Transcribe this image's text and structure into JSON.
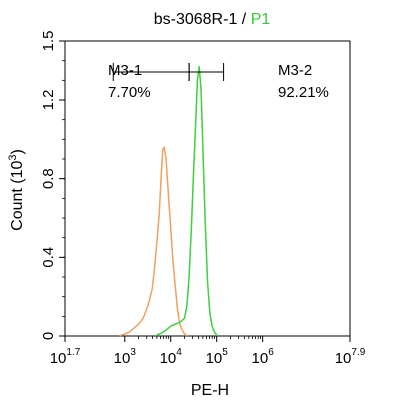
{
  "chart_data": {
    "type": "line",
    "title": {
      "sample": "bs-3068R-1",
      "separator": " / ",
      "gate": "P1"
    },
    "xlabel": "PE-H",
    "ylabel": "Count",
    "ylabel_unit_base": "10",
    "ylabel_unit_exp": "3",
    "x_scale": "log",
    "xlim_log10": [
      1.7,
      7.9
    ],
    "ylim": [
      0,
      1.5
    ],
    "x_ticks": [
      {
        "base": "10",
        "exp": "1.7",
        "log": 1.7
      },
      {
        "base": "10",
        "exp": "3",
        "log": 3
      },
      {
        "base": "10",
        "exp": "4",
        "log": 4
      },
      {
        "base": "10",
        "exp": "5",
        "log": 5
      },
      {
        "base": "10",
        "exp": "6",
        "log": 6
      },
      {
        "base": "10",
        "exp": "7.9",
        "log": 7.9
      }
    ],
    "y_ticks": [
      "0",
      "0.4",
      "0.8",
      "1.2",
      "1.5"
    ],
    "y_tick_values": [
      0,
      0.4,
      0.8,
      1.2,
      1.5
    ],
    "markers": [
      {
        "name": "M3-1",
        "percent": "7.70%",
        "range_log10": [
          2.75,
          4.4
        ]
      },
      {
        "name": "M3-2",
        "percent": "92.21%",
        "range_log10": [
          4.4,
          5.15
        ]
      }
    ],
    "series": [
      {
        "color": "#f0a15e",
        "points": [
          [
            2.9,
            0.002
          ],
          [
            3.0,
            0.01
          ],
          [
            3.1,
            0.02
          ],
          [
            3.2,
            0.04
          ],
          [
            3.3,
            0.06
          ],
          [
            3.4,
            0.09
          ],
          [
            3.5,
            0.15
          ],
          [
            3.6,
            0.24
          ],
          [
            3.65,
            0.35
          ],
          [
            3.7,
            0.48
          ],
          [
            3.75,
            0.62
          ],
          [
            3.8,
            0.84
          ],
          [
            3.83,
            0.95
          ],
          [
            3.86,
            0.96
          ],
          [
            3.9,
            0.9
          ],
          [
            3.95,
            0.72
          ],
          [
            4.0,
            0.55
          ],
          [
            4.05,
            0.38
          ],
          [
            4.1,
            0.25
          ],
          [
            4.15,
            0.13
          ],
          [
            4.2,
            0.06
          ],
          [
            4.25,
            0.03
          ],
          [
            4.3,
            0.01
          ],
          [
            4.35,
            0.002
          ]
        ]
      },
      {
        "color": "#3ed03e",
        "points": [
          [
            3.7,
            0.005
          ],
          [
            3.8,
            0.015
          ],
          [
            3.9,
            0.03
          ],
          [
            4.0,
            0.05
          ],
          [
            4.1,
            0.06
          ],
          [
            4.2,
            0.07
          ],
          [
            4.3,
            0.09
          ],
          [
            4.35,
            0.15
          ],
          [
            4.4,
            0.3
          ],
          [
            4.45,
            0.55
          ],
          [
            4.5,
            0.85
          ],
          [
            4.55,
            1.12
          ],
          [
            4.58,
            1.3
          ],
          [
            4.62,
            1.37
          ],
          [
            4.66,
            1.25
          ],
          [
            4.7,
            0.95
          ],
          [
            4.75,
            0.58
          ],
          [
            4.8,
            0.28
          ],
          [
            4.85,
            0.12
          ],
          [
            4.9,
            0.05
          ],
          [
            4.95,
            0.02
          ],
          [
            5.0,
            0.005
          ]
        ]
      }
    ],
    "colors": {
      "gate": "#33cc33",
      "axis": "#000000"
    }
  }
}
